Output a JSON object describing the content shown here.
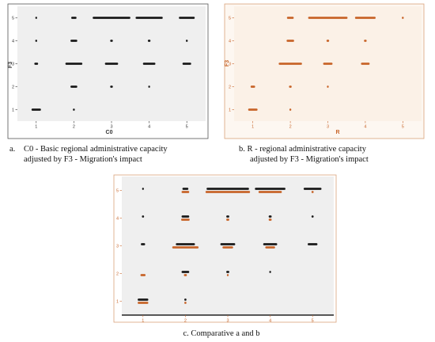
{
  "colors": {
    "black": "#1a1a1a",
    "orange": "#c8652a",
    "panel_bg_a": "#efefef",
    "panel_bg_b": "#fbf1e7",
    "panel_bg_c": "#efefef",
    "frame_b": "#d9a27a",
    "frame_c": "#d9a27a"
  },
  "chart_data": [
    {
      "type": "scatter",
      "id": "a",
      "xlabel": "C0",
      "ylabel": "F3",
      "x_ticks": [
        "1",
        "2",
        "3",
        "4",
        "5"
      ],
      "y_ticks": [
        "1",
        "2",
        "3",
        "4",
        "5"
      ],
      "xlim": [
        0.5,
        5.5
      ],
      "ylim": [
        0.5,
        5.5
      ],
      "series": [
        {
          "color": "black",
          "points": [
            {
              "x": 1,
              "y": 1,
              "w": 0.25
            },
            {
              "x": 1,
              "y": 3,
              "w": 0.1
            },
            {
              "x": 1,
              "y": 4,
              "w": 0.05
            },
            {
              "x": 1,
              "y": 5,
              "w": 0.03
            },
            {
              "x": 2,
              "y": 1,
              "w": 0.05
            },
            {
              "x": 2,
              "y": 2,
              "w": 0.18
            },
            {
              "x": 2,
              "y": 3,
              "w": 0.45
            },
            {
              "x": 2,
              "y": 4,
              "w": 0.18
            },
            {
              "x": 2,
              "y": 5,
              "w": 0.14
            },
            {
              "x": 3,
              "y": 2,
              "w": 0.07
            },
            {
              "x": 3,
              "y": 3,
              "w": 0.35
            },
            {
              "x": 3,
              "y": 4,
              "w": 0.07
            },
            {
              "x": 3,
              "y": 5,
              "w": 1.0
            },
            {
              "x": 4,
              "y": 2,
              "w": 0.04
            },
            {
              "x": 4,
              "y": 3,
              "w": 0.33
            },
            {
              "x": 4,
              "y": 4,
              "w": 0.07
            },
            {
              "x": 4,
              "y": 5,
              "w": 0.72
            },
            {
              "x": 5,
              "y": 3,
              "w": 0.23
            },
            {
              "x": 5,
              "y": 4,
              "w": 0.05
            },
            {
              "x": 5,
              "y": 5,
              "w": 0.42
            }
          ]
        }
      ]
    },
    {
      "type": "scatter",
      "id": "b",
      "xlabel": "R",
      "ylabel": "F3",
      "x_ticks": [
        "1",
        "2",
        "3",
        "4",
        "5"
      ],
      "y_ticks": [
        "1",
        "2",
        "3",
        "4",
        "5"
      ],
      "xlim": [
        0.5,
        5.5
      ],
      "ylim": [
        0.5,
        5.5
      ],
      "series": [
        {
          "color": "orange",
          "points": [
            {
              "x": 1,
              "y": 1,
              "w": 0.25
            },
            {
              "x": 1,
              "y": 2,
              "w": 0.12
            },
            {
              "x": 2,
              "y": 1,
              "w": 0.05
            },
            {
              "x": 2,
              "y": 2,
              "w": 0.07
            },
            {
              "x": 2,
              "y": 3,
              "w": 0.62
            },
            {
              "x": 2,
              "y": 4,
              "w": 0.2
            },
            {
              "x": 2,
              "y": 5,
              "w": 0.18
            },
            {
              "x": 3,
              "y": 2,
              "w": 0.04
            },
            {
              "x": 3,
              "y": 3,
              "w": 0.25
            },
            {
              "x": 3,
              "y": 4,
              "w": 0.07
            },
            {
              "x": 3,
              "y": 5,
              "w": 1.05
            },
            {
              "x": 4,
              "y": 3,
              "w": 0.23
            },
            {
              "x": 4,
              "y": 4,
              "w": 0.07
            },
            {
              "x": 4,
              "y": 5,
              "w": 0.55
            },
            {
              "x": 5,
              "y": 5,
              "w": 0.05
            }
          ]
        }
      ]
    },
    {
      "type": "scatter",
      "id": "c",
      "xlabel": "",
      "ylabel": "",
      "x_ticks": [
        "1",
        "2",
        "3",
        "4",
        "5"
      ],
      "y_ticks": [
        "1",
        "2",
        "3",
        "4",
        "5"
      ],
      "xlim": [
        0.5,
        5.5
      ],
      "ylim": [
        0.5,
        5.5
      ],
      "series": [
        {
          "color": "black",
          "points": [
            {
              "x": 1,
              "y": 1,
              "w": 0.25
            },
            {
              "x": 1,
              "y": 3,
              "w": 0.1
            },
            {
              "x": 1,
              "y": 4,
              "w": 0.05
            },
            {
              "x": 1,
              "y": 5,
              "w": 0.03
            },
            {
              "x": 2,
              "y": 1,
              "w": 0.05
            },
            {
              "x": 2,
              "y": 2,
              "w": 0.18
            },
            {
              "x": 2,
              "y": 3,
              "w": 0.45
            },
            {
              "x": 2,
              "y": 4,
              "w": 0.18
            },
            {
              "x": 2,
              "y": 5,
              "w": 0.14
            },
            {
              "x": 3,
              "y": 2,
              "w": 0.07
            },
            {
              "x": 3,
              "y": 3,
              "w": 0.35
            },
            {
              "x": 3,
              "y": 4,
              "w": 0.07
            },
            {
              "x": 3,
              "y": 5,
              "w": 1.0
            },
            {
              "x": 4,
              "y": 2,
              "w": 0.04
            },
            {
              "x": 4,
              "y": 3,
              "w": 0.33
            },
            {
              "x": 4,
              "y": 4,
              "w": 0.07
            },
            {
              "x": 4,
              "y": 5,
              "w": 0.72
            },
            {
              "x": 5,
              "y": 3,
              "w": 0.23
            },
            {
              "x": 5,
              "y": 4,
              "w": 0.05
            },
            {
              "x": 5,
              "y": 5,
              "w": 0.42
            }
          ]
        },
        {
          "color": "orange",
          "points": [
            {
              "x": 1,
              "y": 1,
              "w": 0.25
            },
            {
              "x": 1,
              "y": 2,
              "w": 0.12
            },
            {
              "x": 2,
              "y": 1,
              "w": 0.05
            },
            {
              "x": 2,
              "y": 2,
              "w": 0.07
            },
            {
              "x": 2,
              "y": 3,
              "w": 0.62
            },
            {
              "x": 2,
              "y": 4,
              "w": 0.2
            },
            {
              "x": 2,
              "y": 5,
              "w": 0.18
            },
            {
              "x": 3,
              "y": 2,
              "w": 0.04
            },
            {
              "x": 3,
              "y": 3,
              "w": 0.25
            },
            {
              "x": 3,
              "y": 4,
              "w": 0.07
            },
            {
              "x": 3,
              "y": 5,
              "w": 1.05
            },
            {
              "x": 4,
              "y": 3,
              "w": 0.23
            },
            {
              "x": 4,
              "y": 4,
              "w": 0.07
            },
            {
              "x": 4,
              "y": 5,
              "w": 0.55
            },
            {
              "x": 5,
              "y": 5,
              "w": 0.05
            }
          ]
        }
      ]
    }
  ],
  "captions": {
    "a_letter": "a.",
    "a_line1": "C0 - Basic regional administrative capacity",
    "a_line2": "adjusted by F3 - Migration's impact",
    "b_line1": "b. R - regional administrative capacity",
    "b_line2": "adjusted by F3 - Migration's impact",
    "c": "c. Comparative a and b"
  }
}
